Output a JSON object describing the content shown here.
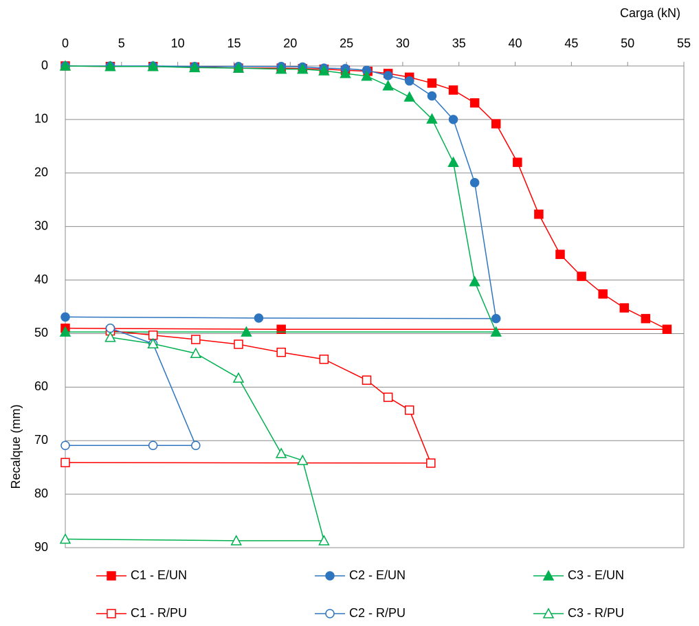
{
  "chart_data": {
    "type": "line",
    "x_label": "Carga (kN)",
    "y_label": "Recalque (mm)",
    "xlim": [
      0,
      55
    ],
    "xticks": [
      0,
      5,
      10,
      15,
      20,
      25,
      30,
      35,
      40,
      45,
      50,
      55
    ],
    "ylim": [
      0,
      90
    ],
    "yticks": [
      0,
      10,
      20,
      30,
      40,
      50,
      60,
      70,
      80,
      90
    ],
    "y_reversed": true,
    "x_axis_position": "top",
    "grid": true,
    "legend": "bottom",
    "series": [
      {
        "name": "C1 - E/UN",
        "color": "#ff0000",
        "marker": "square",
        "filled": true,
        "x": [
          0,
          4,
          7.8,
          11.5,
          15.4,
          19.2,
          21.1,
          23.0,
          24.9,
          26.9,
          28.7,
          30.6,
          32.6,
          34.5,
          36.4,
          38.3,
          40.2,
          42.1,
          44.0,
          45.9,
          47.8,
          49.7,
          51.6,
          53.5,
          19.2,
          0
        ],
        "y": [
          0,
          0.1,
          0.1,
          0.2,
          0.4,
          0.4,
          0.5,
          0.6,
          0.8,
          1.0,
          1.4,
          2.1,
          3.2,
          4.5,
          6.9,
          10.8,
          18.0,
          27.7,
          35.2,
          39.3,
          42.6,
          45.2,
          47.2,
          49.2,
          49.2,
          49.0
        ]
      },
      {
        "name": "C2 - E/UN",
        "color": "#2e75c0",
        "marker": "circle",
        "filled": true,
        "x": [
          0,
          4,
          7.8,
          11.5,
          15.4,
          19.2,
          21.1,
          23.0,
          24.9,
          26.8,
          28.7,
          30.6,
          32.6,
          34.5,
          36.4,
          38.3,
          17.2,
          0
        ],
        "y": [
          0,
          0,
          0,
          0.1,
          0.1,
          0.1,
          0.2,
          0.4,
          0.5,
          0.8,
          1.8,
          2.8,
          5.6,
          10.0,
          21.8,
          47.2,
          47.1,
          46.9
        ]
      },
      {
        "name": "C3 - E/UN",
        "color": "#00b050",
        "marker": "triangle",
        "filled": true,
        "x": [
          0,
          4,
          7.8,
          11.5,
          15.4,
          19.2,
          21.1,
          23.0,
          24.9,
          26.8,
          28.7,
          30.6,
          32.6,
          34.5,
          36.4,
          38.3,
          16.1,
          0
        ],
        "y": [
          0,
          0.1,
          0.1,
          0.3,
          0.4,
          0.6,
          0.6,
          0.9,
          1.4,
          1.9,
          3.7,
          5.8,
          9.9,
          18.0,
          40.3,
          49.7,
          49.7,
          49.7
        ]
      },
      {
        "name": "C1 - R/PU",
        "color": "#ff0000",
        "marker": "square",
        "filled": false,
        "x": [
          4,
          7.8,
          11.6,
          15.4,
          19.2,
          23.0,
          26.8,
          28.7,
          30.6,
          32.5,
          0
        ],
        "y": [
          49.5,
          50.3,
          51.1,
          52.0,
          53.5,
          54.8,
          58.7,
          61.9,
          64.3,
          74.2,
          74.1
        ]
      },
      {
        "name": "C2 - R/PU",
        "color": "#2e75c0",
        "marker": "circle",
        "filled": false,
        "x": [
          4,
          7.8,
          11.6,
          7.8,
          0
        ],
        "y": [
          49.0,
          51.9,
          70.9,
          70.9,
          70.9
        ]
      },
      {
        "name": "C3 - R/PU",
        "color": "#00b050",
        "marker": "triangle",
        "filled": false,
        "x": [
          4,
          7.8,
          11.6,
          15.4,
          19.2,
          21.1,
          23.0,
          15.2,
          0
        ],
        "y": [
          50.7,
          51.9,
          53.7,
          58.3,
          72.4,
          73.7,
          88.7,
          88.7,
          88.4
        ]
      }
    ]
  }
}
